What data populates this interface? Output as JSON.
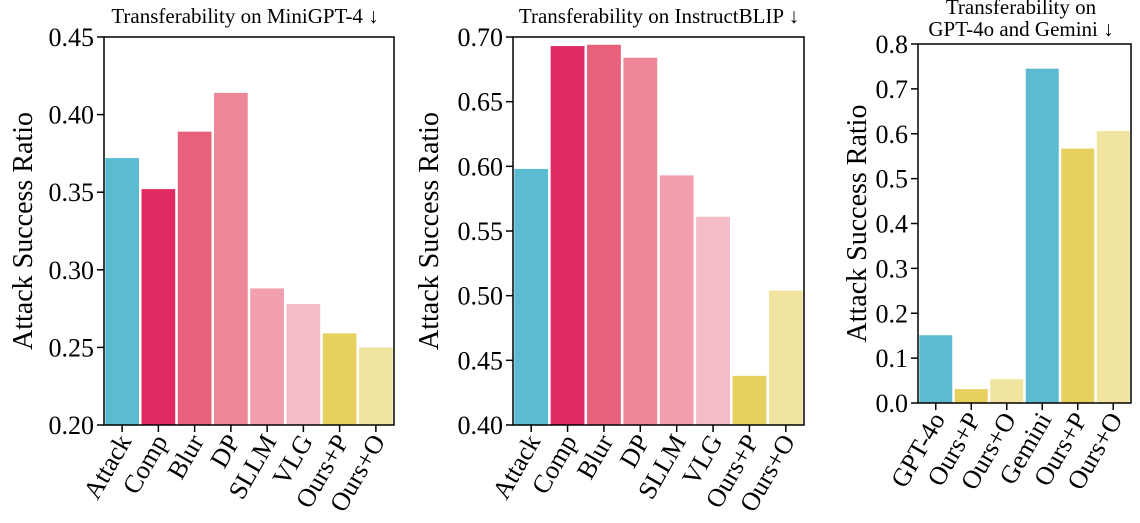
{
  "chart_data": [
    {
      "type": "bar",
      "title": "Transferability on MiniGPT-4 ↓",
      "ylabel": "Attack Success Ratio",
      "ylim": [
        0.2,
        0.45
      ],
      "yticks": [
        "0.20",
        "0.25",
        "0.30",
        "0.35",
        "0.40",
        "0.45"
      ],
      "categories": [
        "Attack",
        "Comp",
        "Blur",
        "DP",
        "SLLM",
        "VLG",
        "Ours+P",
        "Ours+O"
      ],
      "values": [
        0.372,
        0.352,
        0.389,
        0.414,
        0.288,
        0.278,
        0.259,
        0.25
      ],
      "colors": [
        "#5bbcd1",
        "#e02b62",
        "#e8617a",
        "#ee8898",
        "#f29fb0",
        "#f5bcc8",
        "#e8d060",
        "#f0e4a0"
      ]
    },
    {
      "type": "bar",
      "title": "Transferability on InstructBLIP ↓",
      "ylabel": "Attack Success Ratio",
      "ylim": [
        0.4,
        0.7
      ],
      "yticks": [
        "0.40",
        "0.45",
        "0.50",
        "0.55",
        "0.60",
        "0.65",
        "0.70"
      ],
      "categories": [
        "Attack",
        "Comp",
        "Blur",
        "DP",
        "SLLM",
        "VLG",
        "Ours+P",
        "Ours+O"
      ],
      "values": [
        0.598,
        0.693,
        0.694,
        0.684,
        0.593,
        0.561,
        0.438,
        0.504
      ],
      "colors": [
        "#5bbcd1",
        "#e02b62",
        "#e8617a",
        "#ee8898",
        "#f29fb0",
        "#f5bcc8",
        "#e8d060",
        "#f0e4a0"
      ]
    },
    {
      "type": "bar",
      "title": [
        "Transferability on",
        "GPT-4o and Gemini ↓"
      ],
      "ylabel": "Attack Success Ratio",
      "ylim": [
        0.0,
        0.8
      ],
      "yticks": [
        "0.0",
        "0.1",
        "0.2",
        "0.3",
        "0.4",
        "0.5",
        "0.6",
        "0.7",
        "0.8"
      ],
      "categories": [
        "GPT-4o",
        "Ours+P",
        "Ours+O",
        "Gemini",
        "Ours+P",
        "Ours+O"
      ],
      "values": [
        0.151,
        0.031,
        0.053,
        0.745,
        0.567,
        0.606
      ],
      "colors": [
        "#5bbcd1",
        "#e8d060",
        "#f0e4a0",
        "#5bbcd1",
        "#e8d060",
        "#f0e4a0"
      ]
    }
  ]
}
